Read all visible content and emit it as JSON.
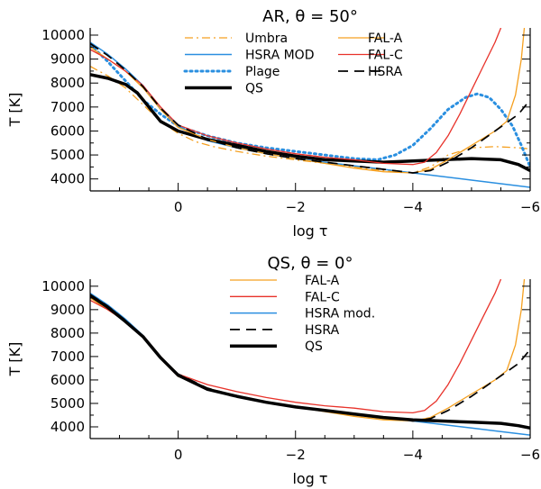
{
  "chart_data": [
    {
      "type": "line",
      "title": "AR, θ = 50°",
      "xlabel": "log τ",
      "ylabel": "T [K]",
      "xlim": [
        1.5,
        -6
      ],
      "ylim": [
        3500,
        10300
      ],
      "xticks": [
        {
          "v": 0,
          "label": "0"
        },
        {
          "v": -2,
          "label": "−2"
        },
        {
          "v": -4,
          "label": "−4"
        },
        {
          "v": -6,
          "label": "−6"
        }
      ],
      "yticks": [
        {
          "v": 4000,
          "label": "4000"
        },
        {
          "v": 5000,
          "label": "5000"
        },
        {
          "v": 6000,
          "label": "6000"
        },
        {
          "v": 7000,
          "label": "7000"
        },
        {
          "v": 8000,
          "label": "8000"
        },
        {
          "v": 9000,
          "label": "9000"
        },
        {
          "v": 10000,
          "label": "10000"
        }
      ],
      "series": [
        {
          "name": "Umbra",
          "color": "#f5a020",
          "dash": "9,4,2,4",
          "width": 1.3,
          "x": [
            1.5,
            1.2,
            0.9,
            0.6,
            0.3,
            0.0,
            -0.3,
            -0.6,
            -1.0,
            -1.5,
            -2.0,
            -2.5,
            -3.0,
            -3.5,
            -4.0,
            -4.3,
            -4.6,
            -5.0,
            -5.4,
            -5.8,
            -6.0
          ],
          "y": [
            8700,
            8300,
            7800,
            7100,
            6400,
            5900,
            5550,
            5350,
            5150,
            4950,
            4800,
            4650,
            4500,
            4350,
            4250,
            4500,
            5000,
            5300,
            5350,
            5300,
            5250
          ]
        },
        {
          "name": "HSRA MOD",
          "color": "#2a8fe0",
          "dash": "",
          "width": 1.5,
          "x": [
            1.5,
            1.2,
            0.9,
            0.6,
            0.3,
            0.0,
            -0.5,
            -1.0,
            -1.5,
            -2.0,
            -2.5,
            -3.0,
            -3.5,
            -4.0,
            -4.5,
            -5.0,
            -5.5,
            -6.0
          ],
          "y": [
            9700,
            9200,
            8600,
            7900,
            6900,
            6200,
            5600,
            5300,
            5050,
            4850,
            4700,
            4550,
            4400,
            4250,
            4100,
            3950,
            3800,
            3650
          ]
        },
        {
          "name": "Plage",
          "color": "#2a8fe0",
          "dash": "2,4",
          "width": 3,
          "x": [
            1.5,
            1.2,
            0.9,
            0.6,
            0.3,
            0.0,
            -0.5,
            -1.0,
            -1.5,
            -2.0,
            -2.5,
            -3.0,
            -3.4,
            -3.7,
            -4.0,
            -4.3,
            -4.6,
            -4.9,
            -5.1,
            -5.3,
            -5.5,
            -5.7,
            -5.85,
            -6.0
          ],
          "y": [
            9600,
            8900,
            8100,
            7300,
            6700,
            6200,
            5800,
            5500,
            5300,
            5150,
            5000,
            4850,
            4800,
            5000,
            5400,
            6100,
            6900,
            7400,
            7550,
            7400,
            6900,
            6200,
            5400,
            4500
          ]
        },
        {
          "name": "QS",
          "color": "#000000",
          "dash": "",
          "width": 3.5,
          "x": [
            1.5,
            1.2,
            0.9,
            0.7,
            0.5,
            0.3,
            0.0,
            -0.5,
            -1.0,
            -1.5,
            -2.0,
            -2.5,
            -3.0,
            -3.5,
            -4.0,
            -4.5,
            -5.0,
            -5.5,
            -5.8,
            -6.0
          ],
          "y": [
            8350,
            8200,
            7950,
            7600,
            7000,
            6400,
            6000,
            5650,
            5400,
            5150,
            4950,
            4800,
            4750,
            4700,
            4750,
            4800,
            4850,
            4800,
            4600,
            4350
          ]
        },
        {
          "name": "FAL-A",
          "color": "#f5a020",
          "dash": "",
          "width": 1.3,
          "x": [
            1.5,
            1.2,
            0.9,
            0.6,
            0.3,
            0.0,
            -0.5,
            -1.0,
            -1.5,
            -2.0,
            -2.5,
            -3.0,
            -3.5,
            -4.0,
            -4.3,
            -4.6,
            -5.0,
            -5.4,
            -5.6,
            -5.75,
            -5.85,
            -5.9
          ],
          "y": [
            9500,
            9000,
            8500,
            7800,
            6900,
            6150,
            5650,
            5300,
            5050,
            4850,
            4650,
            4450,
            4300,
            4250,
            4400,
            4800,
            5400,
            6000,
            6400,
            7500,
            9000,
            10300
          ]
        },
        {
          "name": "FAL-C",
          "color": "#e8322a",
          "dash": "",
          "width": 1.3,
          "x": [
            1.5,
            1.2,
            0.9,
            0.6,
            0.3,
            0.0,
            -0.5,
            -1.0,
            -1.5,
            -2.0,
            -2.5,
            -3.0,
            -3.5,
            -4.0,
            -4.2,
            -4.4,
            -4.6,
            -4.8,
            -5.0,
            -5.2,
            -5.4,
            -5.5
          ],
          "y": [
            9400,
            9000,
            8500,
            7900,
            7000,
            6250,
            5800,
            5500,
            5250,
            5050,
            4900,
            4800,
            4650,
            4600,
            4700,
            5100,
            5800,
            6700,
            7700,
            8700,
            9700,
            10300
          ]
        },
        {
          "name": "HSRA",
          "color": "#000000",
          "dash": "11,7",
          "width": 1.7,
          "x": [
            1.5,
            1.2,
            0.9,
            0.6,
            0.3,
            0.0,
            -0.5,
            -1.0,
            -1.5,
            -2.0,
            -2.5,
            -3.0,
            -3.5,
            -4.0,
            -4.3,
            -4.6,
            -5.0,
            -5.4,
            -5.8,
            -6.0
          ],
          "y": [
            9650,
            9150,
            8550,
            7850,
            6950,
            6250,
            5650,
            5300,
            5050,
            4850,
            4700,
            4550,
            4400,
            4250,
            4350,
            4700,
            5300,
            6000,
            6700,
            7300
          ]
        }
      ],
      "legend": [
        {
          "series": "Umbra",
          "col": 0,
          "row": 0
        },
        {
          "series": "HSRA MOD",
          "col": 0,
          "row": 1
        },
        {
          "series": "Plage",
          "col": 0,
          "row": 2
        },
        {
          "series": "QS",
          "col": 0,
          "row": 3
        },
        {
          "series": "FAL-A",
          "col": 1,
          "row": 0
        },
        {
          "series": "FAL-C",
          "col": 1,
          "row": 1
        },
        {
          "series": "HSRA",
          "col": 1,
          "row": 2
        }
      ]
    },
    {
      "type": "line",
      "title": "QS, θ = 0°",
      "xlabel": "log τ",
      "ylabel": "T [K]",
      "xlim": [
        1.5,
        -6
      ],
      "ylim": [
        3500,
        10300
      ],
      "xticks": [
        {
          "v": 0,
          "label": "0"
        },
        {
          "v": -2,
          "label": "−2"
        },
        {
          "v": -4,
          "label": "−4"
        },
        {
          "v": -6,
          "label": "−6"
        }
      ],
      "yticks": [
        {
          "v": 4000,
          "label": "4000"
        },
        {
          "v": 5000,
          "label": "5000"
        },
        {
          "v": 6000,
          "label": "6000"
        },
        {
          "v": 7000,
          "label": "7000"
        },
        {
          "v": 8000,
          "label": "8000"
        },
        {
          "v": 9000,
          "label": "9000"
        },
        {
          "v": 10000,
          "label": "10000"
        }
      ],
      "series": [
        {
          "name": "FAL-A",
          "color": "#f5a020",
          "dash": "",
          "width": 1.3,
          "x": [
            1.5,
            1.2,
            0.9,
            0.6,
            0.3,
            0.0,
            -0.5,
            -1.0,
            -1.5,
            -2.0,
            -2.5,
            -3.0,
            -3.5,
            -4.0,
            -4.3,
            -4.6,
            -5.0,
            -5.4,
            -5.6,
            -5.75,
            -5.85,
            -5.9
          ],
          "y": [
            9500,
            9000,
            8500,
            7800,
            6900,
            6150,
            5650,
            5300,
            5050,
            4850,
            4650,
            4450,
            4300,
            4250,
            4400,
            4800,
            5400,
            6000,
            6400,
            7500,
            9000,
            10300
          ]
        },
        {
          "name": "FAL-C",
          "color": "#e8322a",
          "dash": "",
          "width": 1.3,
          "x": [
            1.5,
            1.2,
            0.9,
            0.6,
            0.3,
            0.0,
            -0.5,
            -1.0,
            -1.5,
            -2.0,
            -2.5,
            -3.0,
            -3.5,
            -4.0,
            -4.2,
            -4.4,
            -4.6,
            -4.8,
            -5.0,
            -5.2,
            -5.4,
            -5.5
          ],
          "y": [
            9400,
            9000,
            8500,
            7900,
            7000,
            6250,
            5800,
            5500,
            5250,
            5050,
            4900,
            4800,
            4650,
            4600,
            4700,
            5100,
            5800,
            6700,
            7700,
            8700,
            9700,
            10300
          ]
        },
        {
          "name": "HSRA mod.",
          "color": "#2a8fe0",
          "dash": "",
          "width": 1.5,
          "x": [
            1.5,
            1.2,
            0.9,
            0.6,
            0.3,
            0.0,
            -0.5,
            -1.0,
            -1.5,
            -2.0,
            -2.5,
            -3.0,
            -3.5,
            -4.0,
            -4.5,
            -5.0,
            -5.5,
            -6.0
          ],
          "y": [
            9700,
            9200,
            8600,
            7900,
            6900,
            6200,
            5600,
            5300,
            5050,
            4850,
            4700,
            4550,
            4400,
            4250,
            4100,
            3950,
            3800,
            3650
          ]
        },
        {
          "name": "HSRA",
          "color": "#000000",
          "dash": "11,7",
          "width": 1.7,
          "x": [
            1.5,
            1.2,
            0.9,
            0.6,
            0.3,
            0.0,
            -0.5,
            -1.0,
            -1.5,
            -2.0,
            -2.5,
            -3.0,
            -3.5,
            -4.0,
            -4.3,
            -4.6,
            -5.0,
            -5.4,
            -5.8,
            -6.0
          ],
          "y": [
            9650,
            9150,
            8550,
            7850,
            6950,
            6250,
            5650,
            5300,
            5050,
            4850,
            4700,
            4550,
            4400,
            4250,
            4350,
            4700,
            5300,
            6000,
            6700,
            7300
          ]
        },
        {
          "name": "QS",
          "color": "#000000",
          "dash": "",
          "width": 3.5,
          "x": [
            1.5,
            1.2,
            0.9,
            0.6,
            0.3,
            0.0,
            -0.5,
            -1.0,
            -1.5,
            -2.0,
            -2.5,
            -3.0,
            -3.5,
            -4.0,
            -4.5,
            -5.0,
            -5.5,
            -5.8,
            -6.0
          ],
          "y": [
            9600,
            9100,
            8500,
            7850,
            6950,
            6200,
            5600,
            5300,
            5050,
            4850,
            4700,
            4550,
            4400,
            4300,
            4250,
            4200,
            4150,
            4050,
            3950
          ]
        }
      ],
      "legend": [
        {
          "series": "FAL-A",
          "col": 0,
          "row": 0
        },
        {
          "series": "FAL-C",
          "col": 0,
          "row": 1
        },
        {
          "series": "HSRA mod.",
          "col": 0,
          "row": 2
        },
        {
          "series": "HSRA",
          "col": 0,
          "row": 3
        },
        {
          "series": "QS",
          "col": 0,
          "row": 4
        }
      ]
    }
  ]
}
